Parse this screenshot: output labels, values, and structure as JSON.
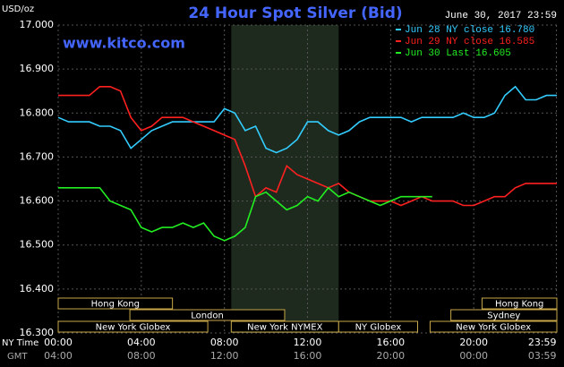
{
  "chart_data": {
    "type": "line",
    "title": "24 Hour Spot Silver (Bid)",
    "y_label": "USD/oz",
    "timestamp": "June 30, 2017 23:59",
    "watermark": "www.kitco.com",
    "x_label": "NY Time",
    "x2_label": "GMT",
    "x": [
      0,
      0.5,
      1,
      1.5,
      2,
      2.5,
      3,
      3.5,
      4,
      4.5,
      5,
      5.5,
      6,
      6.5,
      7,
      7.5,
      8,
      8.5,
      9,
      9.5,
      10,
      10.5,
      11,
      11.5,
      12,
      12.5,
      13,
      13.5,
      14,
      14.5,
      15,
      15.5,
      16,
      16.5,
      17,
      17.5,
      18,
      18.5,
      19,
      19.5,
      20,
      20.5,
      21,
      21.5,
      22,
      22.5,
      23,
      23.5,
      24
    ],
    "series": [
      {
        "name": "Jun 28 NY close 16.780",
        "color": "#33ccff",
        "values": [
          16.79,
          16.78,
          16.78,
          16.78,
          16.77,
          16.77,
          16.76,
          16.72,
          16.74,
          16.76,
          16.77,
          16.78,
          16.78,
          16.78,
          16.78,
          16.78,
          16.81,
          16.8,
          16.76,
          16.77,
          16.72,
          16.71,
          16.72,
          16.74,
          16.78,
          16.78,
          16.76,
          16.75,
          16.76,
          16.78,
          16.79,
          16.79,
          16.79,
          16.79,
          16.78,
          16.79,
          16.79,
          16.79,
          16.79,
          16.8,
          16.79,
          16.79,
          16.8,
          16.84,
          16.86,
          16.83,
          16.83,
          16.84,
          16.84
        ]
      },
      {
        "name": "Jun 29 NY close 16.585",
        "color": "#ff2020",
        "values": [
          16.84,
          16.84,
          16.84,
          16.84,
          16.86,
          16.86,
          16.85,
          16.79,
          16.76,
          16.77,
          16.79,
          16.79,
          16.79,
          16.78,
          16.77,
          16.76,
          16.75,
          16.74,
          16.68,
          16.61,
          16.63,
          16.62,
          16.68,
          16.66,
          16.65,
          16.64,
          16.63,
          16.64,
          16.62,
          16.61,
          16.6,
          16.6,
          16.6,
          16.59,
          16.6,
          16.61,
          16.6,
          16.6,
          16.6,
          16.59,
          16.59,
          16.6,
          16.61,
          16.61,
          16.63,
          16.64,
          16.64,
          16.64,
          16.64
        ]
      },
      {
        "name": "Jun 30 Last 16.605",
        "color": "#22ee22",
        "values": [
          16.63,
          16.63,
          16.63,
          16.63,
          16.63,
          16.6,
          16.59,
          16.58,
          16.54,
          16.53,
          16.54,
          16.54,
          16.55,
          16.54,
          16.55,
          16.52,
          16.51,
          16.52,
          16.54,
          16.61,
          16.62,
          16.6,
          16.58,
          16.59,
          16.61,
          16.6,
          16.63,
          16.61,
          16.62,
          16.61,
          16.6,
          16.59,
          16.6,
          16.61,
          16.61,
          16.61,
          16.61,
          null,
          null,
          null,
          null,
          null,
          null,
          null,
          null,
          null,
          null,
          null,
          null
        ]
      }
    ],
    "xlim": [
      0,
      24
    ],
    "xticks": [
      {
        "value": 0,
        "label": "00:00"
      },
      {
        "value": 4,
        "label": "04:00"
      },
      {
        "value": 8,
        "label": "08:00"
      },
      {
        "value": 12,
        "label": "12:00"
      },
      {
        "value": 16,
        "label": "16:00"
      },
      {
        "value": 20,
        "label": "20:00"
      },
      {
        "value": 23.98,
        "label": "23:59"
      }
    ],
    "x2ticks": [
      "04:00",
      "08:00",
      "12:00",
      "16:00",
      "20:00",
      "00:00",
      "03:59"
    ],
    "ylim": [
      16.3,
      17.0
    ],
    "yticks": [
      {
        "value": 16.3,
        "label": "16.300"
      },
      {
        "value": 16.4,
        "label": "16.400"
      },
      {
        "value": 16.5,
        "label": "16.500"
      },
      {
        "value": 16.6,
        "label": "16.600"
      },
      {
        "value": 16.7,
        "label": "16.700"
      },
      {
        "value": 16.8,
        "label": "16.800"
      },
      {
        "value": 16.9,
        "label": "16.900"
      },
      {
        "value": 17.0,
        "label": "17.000"
      }
    ],
    "grid": true,
    "shaded_region": [
      8.33,
      13.5
    ],
    "sessions": [
      {
        "label": "Hong Kong",
        "start": 0,
        "end": 5.5,
        "row": 0
      },
      {
        "label": "London",
        "start": 3.45,
        "end": 10.9,
        "row": 1
      },
      {
        "label": "New York Globex",
        "start": 0,
        "end": 7.2,
        "row": 2
      },
      {
        "label": "New York NYMEX",
        "start": 8.33,
        "end": 13.5,
        "row": 2
      },
      {
        "label": "NY Globex",
        "start": 13.5,
        "end": 17.3,
        "row": 2
      },
      {
        "label": "Hong Kong",
        "start": 20.4,
        "end": 24,
        "row": 0
      },
      {
        "label": "Sydney",
        "start": 18.9,
        "end": 24,
        "row": 1
      },
      {
        "label": "New York Globex",
        "start": 17.9,
        "end": 24,
        "row": 2
      }
    ]
  }
}
